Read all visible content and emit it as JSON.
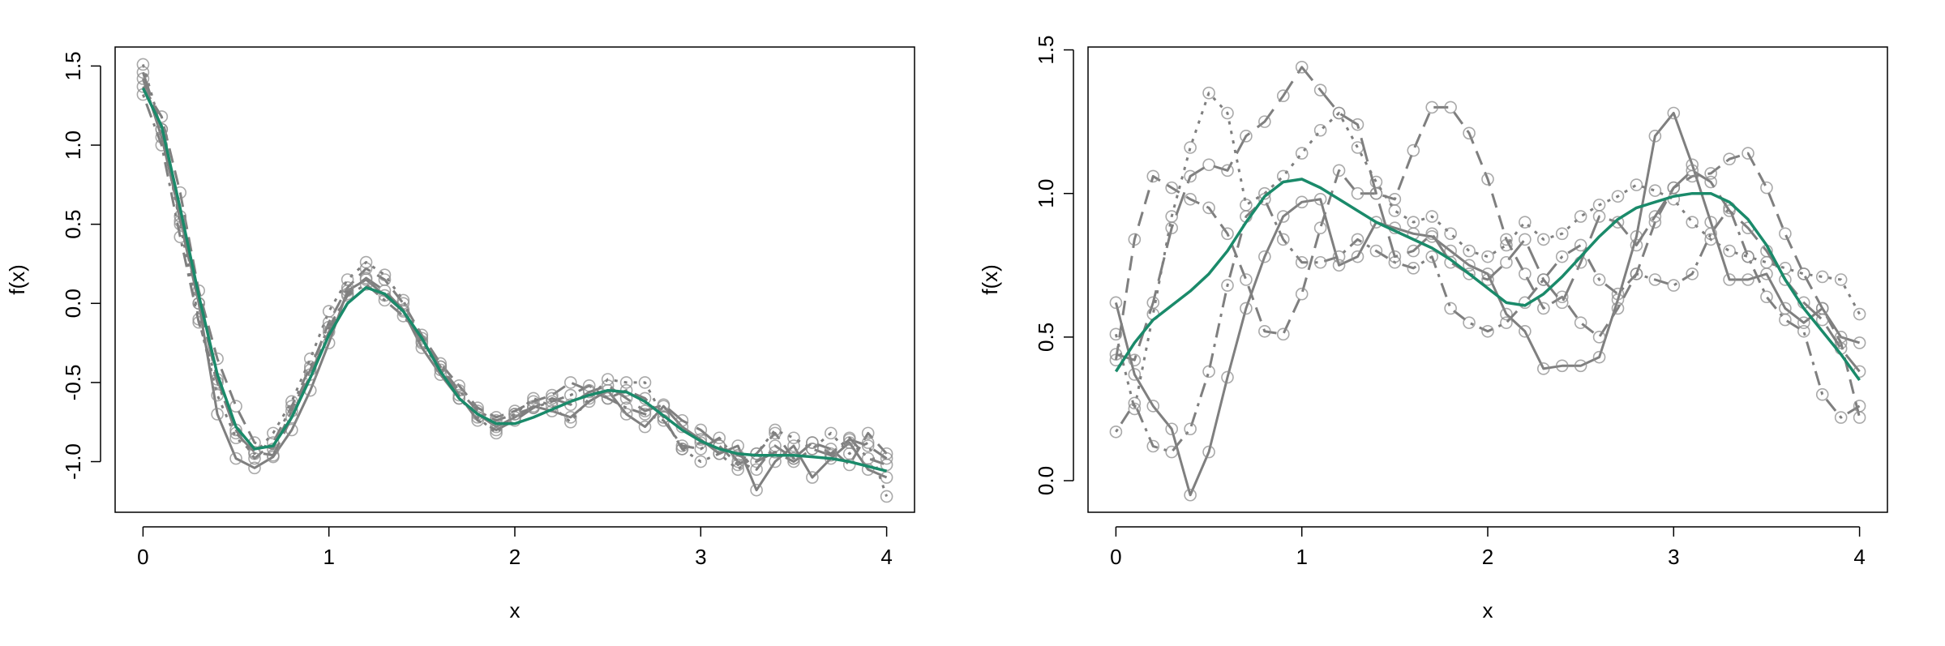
{
  "colors": {
    "mean_line": "#1a8a6a",
    "sample_line": "#7f7f7f",
    "marker_stroke": "#8c8c8c",
    "frame": "#000000"
  },
  "chart_data": [
    {
      "type": "line",
      "xlabel": "x",
      "ylabel": "f(x)",
      "xlim": [
        -0.15,
        4.15
      ],
      "ylim": [
        -1.32,
        1.62
      ],
      "xticks": [
        0,
        1,
        2,
        3,
        4
      ],
      "xtick_labels": [
        "0",
        "1",
        "2",
        "3",
        "4"
      ],
      "yticks": [
        -1.0,
        -0.5,
        0.0,
        0.5,
        1.0,
        1.5
      ],
      "ytick_labels": [
        "-1.0",
        "-0.5",
        "0.0",
        "0.5",
        "1.0",
        "1.5"
      ],
      "grid": false,
      "legend": "none",
      "x": [
        0.0,
        0.1,
        0.2,
        0.3,
        0.4,
        0.5,
        0.6,
        0.7,
        0.8,
        0.9,
        1.0,
        1.1,
        1.2,
        1.3,
        1.4,
        1.5,
        1.6,
        1.7,
        1.8,
        1.9,
        2.0,
        2.1,
        2.2,
        2.3,
        2.4,
        2.5,
        2.6,
        2.7,
        2.8,
        2.9,
        3.0,
        3.1,
        3.2,
        3.3,
        3.4,
        3.5,
        3.6,
        3.7,
        3.8,
        3.9,
        4.0
      ],
      "mean": {
        "style": "solid",
        "values": [
          1.36,
          1.12,
          0.6,
          0.05,
          -0.45,
          -0.78,
          -0.92,
          -0.9,
          -0.72,
          -0.47,
          -0.2,
          0.0,
          0.1,
          0.06,
          -0.05,
          -0.22,
          -0.43,
          -0.6,
          -0.7,
          -0.76,
          -0.76,
          -0.72,
          -0.67,
          -0.62,
          -0.58,
          -0.55,
          -0.56,
          -0.62,
          -0.71,
          -0.8,
          -0.87,
          -0.92,
          -0.95,
          -0.96,
          -0.96,
          -0.96,
          -0.97,
          -0.98,
          -1.0,
          -1.03,
          -1.06
        ]
      },
      "series": [
        {
          "style": "solid",
          "values": [
            1.42,
            1.05,
            0.55,
            0.0,
            -0.7,
            -0.98,
            -1.04,
            -0.97,
            -0.8,
            -0.55,
            -0.25,
            0.08,
            0.15,
            0.05,
            -0.05,
            -0.28,
            -0.45,
            -0.6,
            -0.7,
            -0.78,
            -0.72,
            -0.65,
            -0.68,
            -0.72,
            -0.62,
            -0.55,
            -0.7,
            -0.78,
            -0.65,
            -0.78,
            -0.86,
            -0.95,
            -0.9,
            -1.18,
            -1.0,
            -0.9,
            -1.1,
            -0.98,
            -0.88,
            -1.05,
            -1.1
          ]
        },
        {
          "style": "dashed",
          "values": [
            1.37,
            1.18,
            0.7,
            0.08,
            -0.35,
            -0.65,
            -0.88,
            -0.92,
            -0.68,
            -0.42,
            -0.12,
            0.1,
            0.22,
            0.15,
            0.0,
            -0.2,
            -0.38,
            -0.52,
            -0.66,
            -0.72,
            -0.68,
            -0.62,
            -0.58,
            -0.5,
            -0.55,
            -0.6,
            -0.55,
            -0.6,
            -0.72,
            -0.92,
            -0.88,
            -0.9,
            -1.02,
            -0.95,
            -0.82,
            -0.98,
            -0.88,
            -0.92,
            -1.02,
            -0.82,
            -0.95
          ]
        },
        {
          "style": "dotted",
          "values": [
            1.51,
            1.1,
            0.5,
            -0.1,
            -0.58,
            -0.85,
            -0.95,
            -0.82,
            -0.62,
            -0.35,
            -0.05,
            0.15,
            0.26,
            0.18,
            0.02,
            -0.25,
            -0.42,
            -0.6,
            -0.72,
            -0.82,
            -0.7,
            -0.6,
            -0.65,
            -0.75,
            -0.6,
            -0.48,
            -0.5,
            -0.5,
            -0.72,
            -0.92,
            -1.0,
            -0.95,
            -1.05,
            -0.95,
            -0.8,
            -0.85,
            -0.92,
            -0.82,
            -0.95,
            -0.88,
            -1.22
          ]
        },
        {
          "style": "dotdash",
          "values": [
            1.32,
            1.0,
            0.42,
            -0.12,
            -0.5,
            -0.8,
            -0.98,
            -0.88,
            -0.65,
            -0.4,
            -0.15,
            0.05,
            0.12,
            0.02,
            -0.08,
            -0.22,
            -0.4,
            -0.55,
            -0.68,
            -0.74,
            -0.7,
            -0.66,
            -0.62,
            -0.58,
            -0.52,
            -0.6,
            -0.66,
            -0.7,
            -0.74,
            -0.9,
            -0.92,
            -0.85,
            -1.0,
            -1.05,
            -0.9,
            -0.98,
            -0.88,
            -0.95,
            -0.85,
            -0.98,
            -1.02
          ]
        },
        {
          "style": "longdash",
          "values": [
            1.46,
            1.1,
            0.52,
            0.0,
            -0.48,
            -0.82,
            -0.94,
            -0.96,
            -0.72,
            -0.45,
            -0.18,
            0.06,
            0.16,
            0.08,
            -0.04,
            -0.24,
            -0.4,
            -0.58,
            -0.74,
            -0.8,
            -0.74,
            -0.66,
            -0.6,
            -0.64,
            -0.56,
            -0.52,
            -0.6,
            -0.68,
            -0.64,
            -0.74,
            -0.8,
            -0.9,
            -0.96,
            -1.0,
            -0.94,
            -1.0,
            -0.92,
            -0.96,
            -0.86,
            -0.9,
            -0.98
          ]
        }
      ]
    },
    {
      "type": "line",
      "xlabel": "x",
      "ylabel": "f(x)",
      "xlim": [
        -0.15,
        4.15
      ],
      "ylim": [
        -0.11,
        1.51
      ],
      "xticks": [
        0,
        1,
        2,
        3,
        4
      ],
      "xtick_labels": [
        "0",
        "1",
        "2",
        "3",
        "4"
      ],
      "yticks": [
        0.0,
        0.5,
        1.0,
        1.5
      ],
      "ytick_labels": [
        "0.0",
        "0.5",
        "1.0",
        "1.5"
      ],
      "grid": false,
      "legend": "none",
      "x": [
        0.0,
        0.1,
        0.2,
        0.3,
        0.4,
        0.5,
        0.6,
        0.7,
        0.8,
        0.9,
        1.0,
        1.1,
        1.2,
        1.3,
        1.4,
        1.5,
        1.6,
        1.7,
        1.8,
        1.9,
        2.0,
        2.1,
        2.2,
        2.3,
        2.4,
        2.5,
        2.6,
        2.7,
        2.8,
        2.9,
        3.0,
        3.1,
        3.2,
        3.3,
        3.4,
        3.5,
        3.6,
        3.7,
        3.8,
        3.9,
        4.0
      ],
      "mean": {
        "style": "solid",
        "values": [
          0.38,
          0.48,
          0.56,
          0.61,
          0.66,
          0.72,
          0.8,
          0.9,
          0.99,
          1.04,
          1.05,
          1.02,
          0.98,
          0.94,
          0.9,
          0.87,
          0.84,
          0.81,
          0.77,
          0.72,
          0.67,
          0.62,
          0.61,
          0.65,
          0.71,
          0.78,
          0.85,
          0.91,
          0.95,
          0.97,
          0.99,
          1.0,
          1.0,
          0.97,
          0.91,
          0.82,
          0.7,
          0.6,
          0.52,
          0.44,
          0.35
        ]
      },
      "series": [
        {
          "style": "solid",
          "values": [
            0.62,
            0.37,
            0.26,
            0.18,
            -0.05,
            0.1,
            0.36,
            0.6,
            0.78,
            0.92,
            0.97,
            0.98,
            0.75,
            0.78,
            0.9,
            0.88,
            0.86,
            0.85,
            0.8,
            0.75,
            0.72,
            0.58,
            0.52,
            0.39,
            0.4,
            0.4,
            0.43,
            0.63,
            0.85,
            1.2,
            1.28,
            1.1,
            0.9,
            0.7,
            0.7,
            0.72,
            0.6,
            0.55,
            0.6,
            0.5,
            0.48
          ]
        },
        {
          "style": "dashed",
          "values": [
            0.42,
            0.84,
            1.06,
            1.02,
            0.98,
            0.95,
            0.86,
            0.7,
            0.52,
            0.51,
            0.65,
            0.88,
            1.08,
            1.0,
            1.0,
            0.98,
            1.15,
            1.3,
            1.3,
            1.21,
            1.05,
            0.84,
            0.72,
            0.6,
            0.64,
            0.55,
            0.5,
            0.6,
            0.72,
            0.9,
            1.02,
            1.06,
            1.07,
            1.12,
            1.14,
            1.02,
            0.86,
            0.72,
            0.6,
            0.48,
            0.22
          ]
        },
        {
          "style": "dotted",
          "values": [
            0.51,
            0.25,
            0.58,
            0.92,
            1.16,
            1.35,
            1.28,
            0.96,
            1.0,
            1.06,
            1.14,
            1.22,
            1.28,
            1.16,
            1.04,
            0.94,
            0.9,
            0.92,
            0.86,
            0.8,
            0.78,
            0.82,
            0.9,
            0.84,
            0.86,
            0.92,
            0.96,
            0.99,
            1.03,
            1.01,
            0.98,
            0.9,
            0.84,
            0.8,
            0.78,
            0.76,
            0.74,
            0.72,
            0.71,
            0.7,
            0.58
          ]
        },
        {
          "style": "dotdash",
          "values": [
            0.17,
            0.27,
            0.12,
            0.1,
            0.18,
            0.38,
            0.68,
            0.92,
            0.98,
            0.84,
            0.76,
            0.76,
            0.78,
            0.84,
            0.8,
            0.76,
            0.74,
            0.78,
            0.6,
            0.55,
            0.52,
            0.55,
            0.62,
            0.7,
            0.78,
            0.82,
            0.7,
            0.65,
            0.72,
            0.7,
            0.68,
            0.72,
            0.86,
            0.95,
            0.78,
            0.64,
            0.56,
            0.52,
            0.3,
            0.22,
            0.26
          ]
        },
        {
          "style": "longdash",
          "values": [
            0.44,
            0.42,
            0.62,
            0.88,
            1.06,
            1.1,
            1.08,
            1.2,
            1.25,
            1.34,
            1.44,
            1.36,
            1.28,
            1.24,
            1.0,
            0.78,
            0.8,
            0.86,
            0.76,
            0.72,
            0.7,
            0.76,
            0.84,
            0.7,
            0.62,
            0.76,
            0.92,
            0.9,
            0.82,
            0.92,
            1.02,
            1.08,
            1.04,
            0.94,
            0.88,
            0.8,
            0.7,
            0.62,
            0.56,
            0.46,
            0.38
          ]
        }
      ]
    }
  ]
}
